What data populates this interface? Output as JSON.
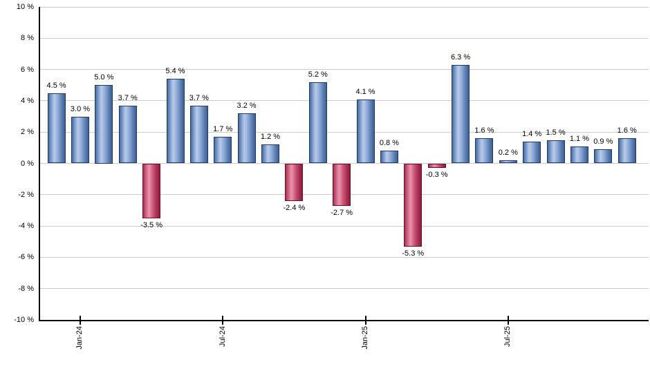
{
  "chart_data": {
    "type": "bar",
    "title": "",
    "xlabel": "",
    "ylabel": "",
    "unit": "%",
    "ylim": [
      -10,
      10
    ],
    "y_tick_step": 2,
    "grid": "horizontal",
    "legend": "none",
    "y_tick_labels": [
      "10 %",
      "8 %",
      "6 %",
      "4 %",
      "2 %",
      "0 %",
      "-2 %",
      "-4 %",
      "-6 %",
      "-8 %",
      "-10 %"
    ],
    "values": [
      4.5,
      3.0,
      5.0,
      3.7,
      -3.5,
      5.4,
      3.7,
      1.7,
      3.2,
      1.2,
      -2.4,
      5.2,
      -2.7,
      4.1,
      0.8,
      -5.3,
      -0.3,
      6.3,
      1.6,
      0.2,
      1.4,
      1.5,
      1.1,
      0.9,
      1.6
    ],
    "bar_labels": [
      "4.5 %",
      "3.0 %",
      "5.0 %",
      "3.7 %",
      "-3.5 %",
      "5.4 %",
      "3.7 %",
      "1.7 %",
      "3.2 %",
      "1.2 %",
      "-2.4 %",
      "5.2 %",
      "-2.7 %",
      "4.1 %",
      "0.8 %",
      "-5.3 %",
      "-0.3 %",
      "6.3 %",
      "1.6 %",
      "0.2 %",
      "1.4 %",
      "1.5 %",
      "1.1 %",
      "0.9 %",
      "1.6 %"
    ],
    "x_tick_labels": [
      {
        "bar_index": 1,
        "label": "Jan-24"
      },
      {
        "bar_index": 7,
        "label": "Jul-24"
      },
      {
        "bar_index": 13,
        "label": "Jan-25"
      },
      {
        "bar_index": 19,
        "label": "Jul-25"
      }
    ],
    "colors": {
      "positive_bar": "#7293c4",
      "positive_bar_highlight": "#b9cbe9",
      "negative_bar": "#c65878",
      "negative_bar_highlight": "#ec93ab",
      "gridline": "#cccccc",
      "axis": "#000000",
      "label_text": "#000000"
    }
  }
}
